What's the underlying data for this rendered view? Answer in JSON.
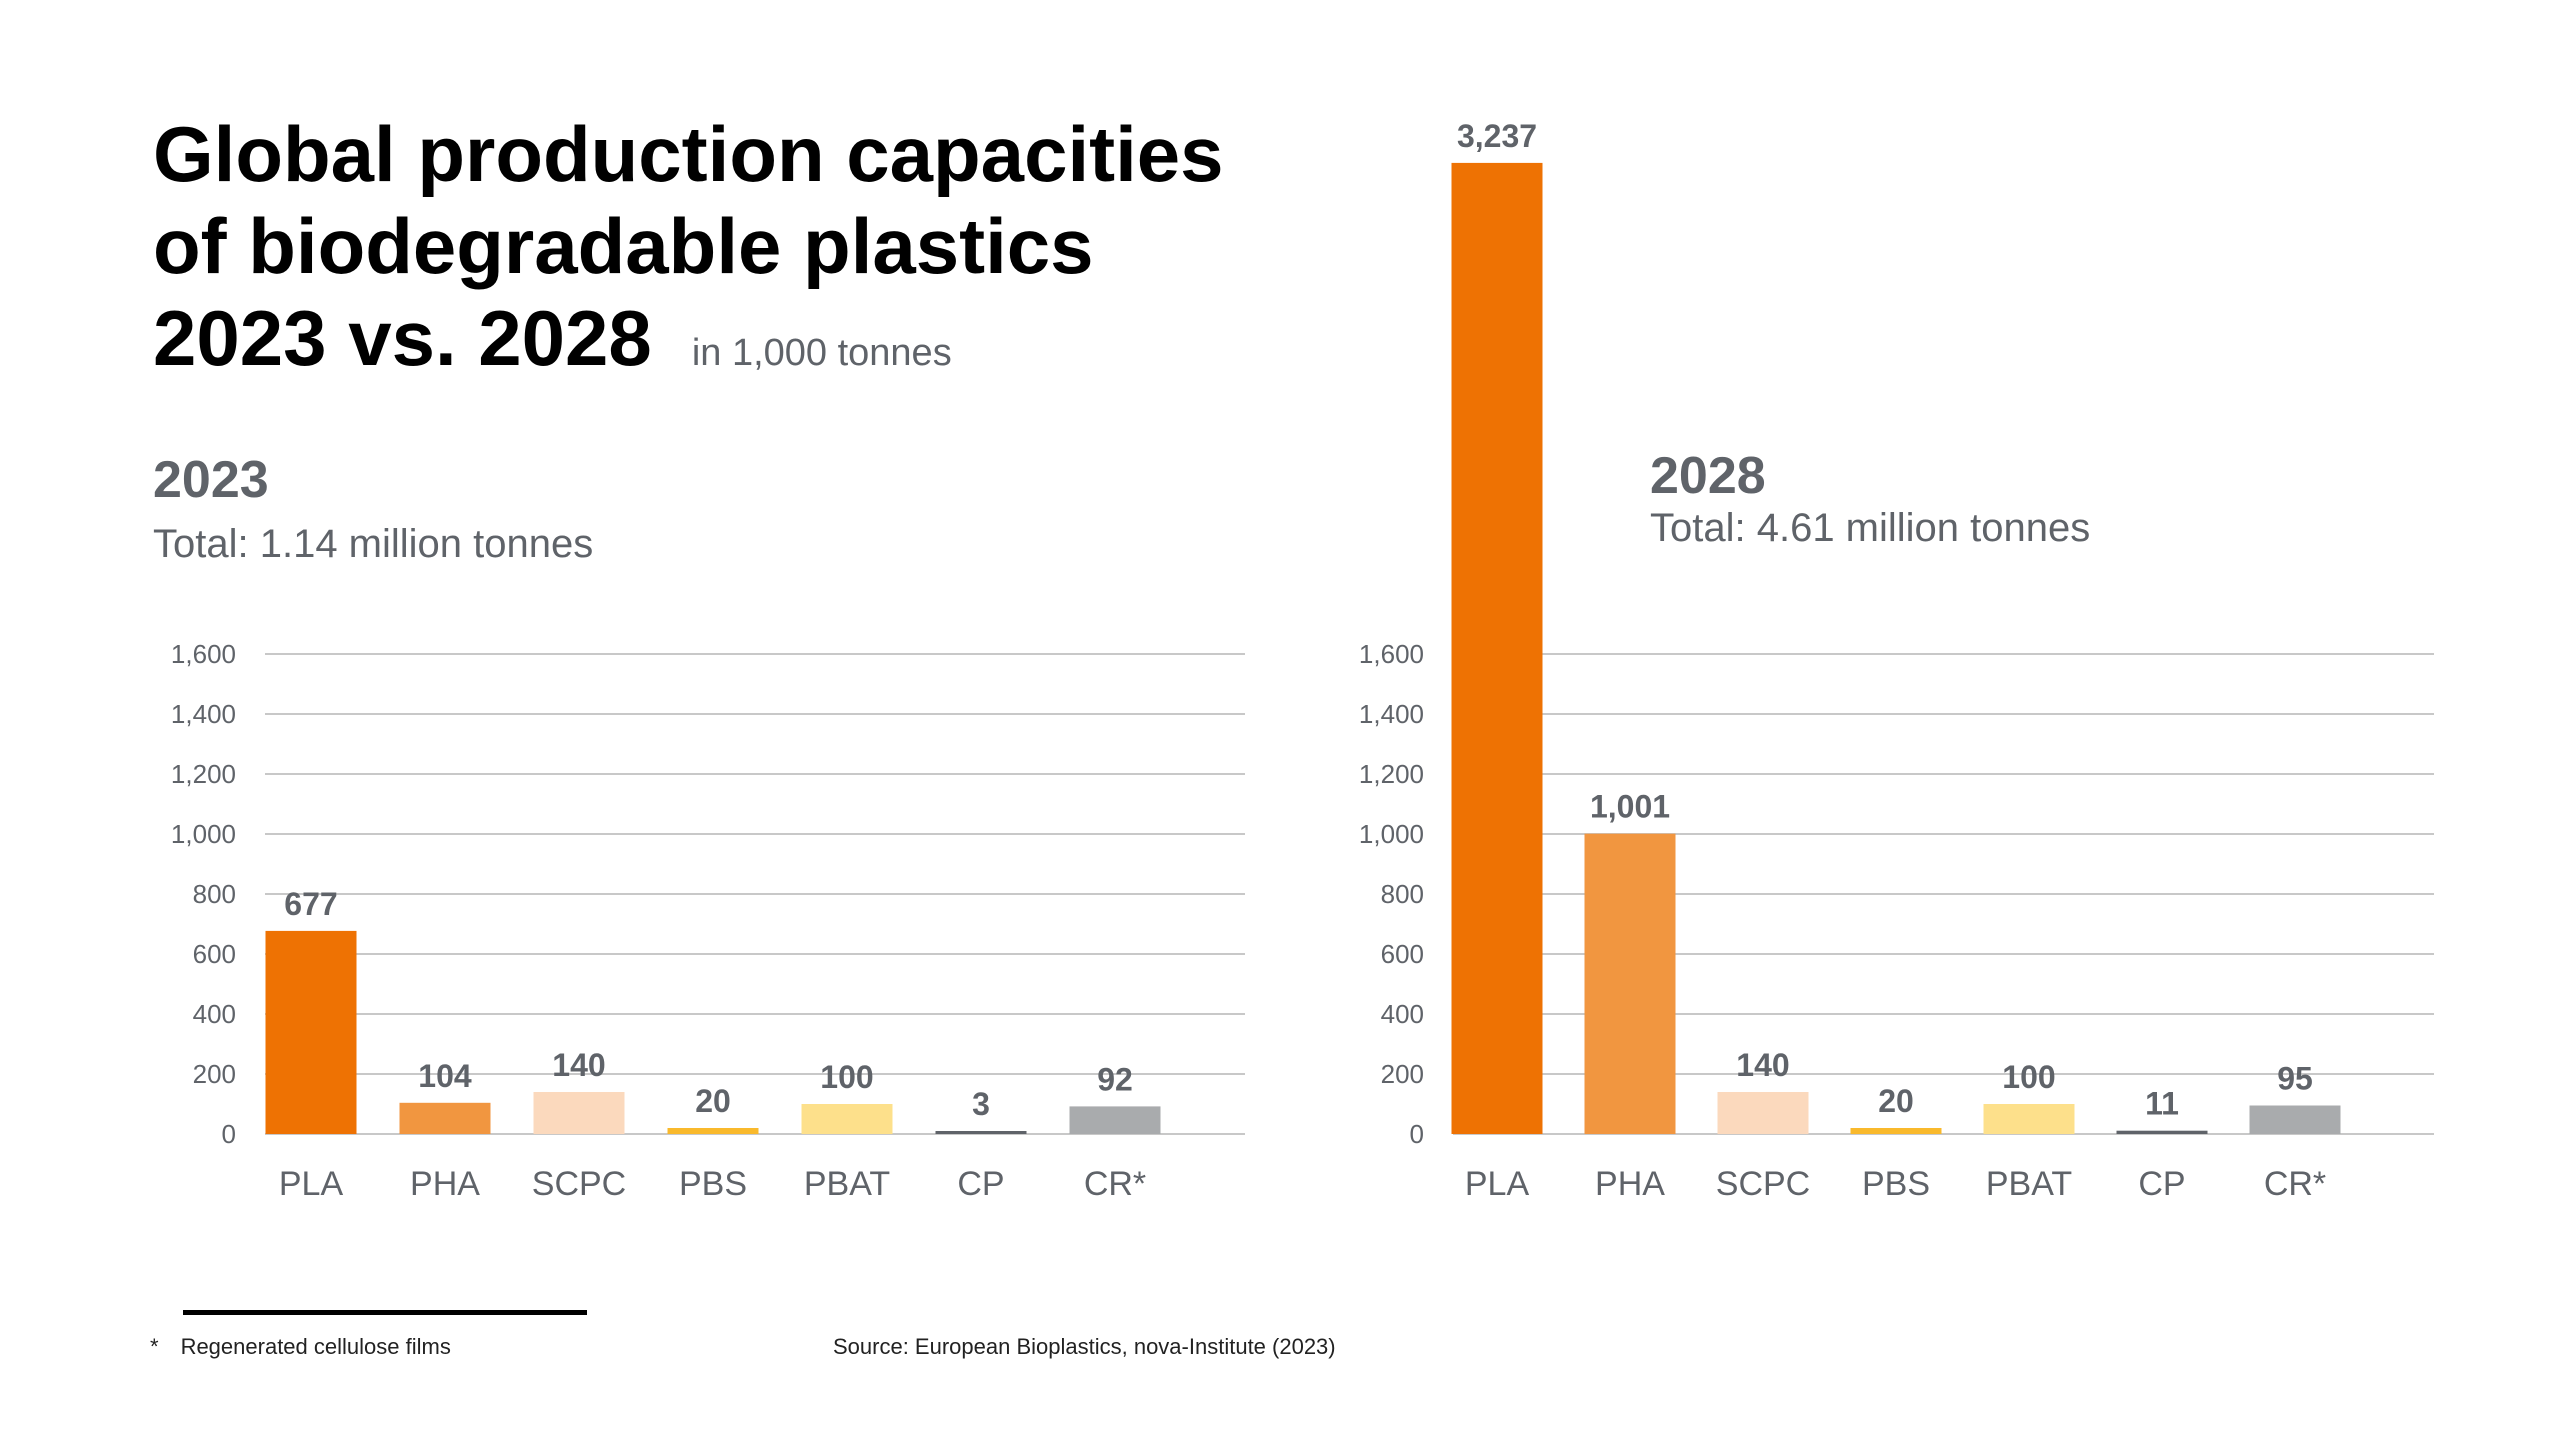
{
  "header": {
    "title_lines": [
      "Global production capacities",
      "of biodegradable plastics",
      "2023 vs. 2028"
    ],
    "unit_note": "in 1,000 tonnes"
  },
  "panels": [
    {
      "year": "2023",
      "total": "Total: 1.14 million tonnes"
    },
    {
      "year": "2028",
      "total": "Total: 4.61 million tonnes"
    }
  ],
  "footer": {
    "footnote_marker": "*",
    "footnote_text": "Regenerated cellulose films",
    "source": "Source: European Bioplastics, nova-Institute (2023)"
  },
  "chart_data": [
    {
      "type": "bar",
      "title": "2023",
      "categories": [
        "PLA",
        "PHA",
        "SCPC",
        "PBS",
        "PBAT",
        "CP",
        "CR*"
      ],
      "values": [
        677,
        104,
        140,
        20,
        100,
        3,
        92
      ],
      "value_labels": [
        "677",
        "104",
        "140",
        "20",
        "100",
        "3",
        "92"
      ],
      "colors": [
        "#ee7203",
        "#f19640",
        "#fbd9bd",
        "#f9b92c",
        "#fde08b",
        "#5f6369",
        "#a9abad"
      ],
      "ylim": [
        0,
        1600
      ],
      "yticks": [
        0,
        200,
        400,
        600,
        800,
        1000,
        1200,
        1400,
        1600
      ],
      "ytick_labels": [
        "0",
        "200",
        "400",
        "600",
        "800",
        "1,000",
        "1,200",
        "1,400",
        "1,600"
      ],
      "grid": true
    },
    {
      "type": "bar",
      "title": "2028",
      "categories": [
        "PLA",
        "PHA",
        "SCPC",
        "PBS",
        "PBAT",
        "CP",
        "CR*"
      ],
      "values": [
        3237,
        1001,
        140,
        20,
        100,
        11,
        95
      ],
      "value_labels": [
        "3,237",
        "1,001",
        "140",
        "20",
        "100",
        "11",
        "95"
      ],
      "colors": [
        "#ee7203",
        "#f19640",
        "#fbd9bd",
        "#f9b92c",
        "#fde08b",
        "#5f6369",
        "#a9abad"
      ],
      "ylim": [
        0,
        1600
      ],
      "yticks": [
        0,
        200,
        400,
        600,
        800,
        1000,
        1200,
        1400,
        1600
      ],
      "ytick_labels": [
        "0",
        "200",
        "400",
        "600",
        "800",
        "1,000",
        "1,200",
        "1,400",
        "1,600"
      ],
      "grid": true
    }
  ]
}
